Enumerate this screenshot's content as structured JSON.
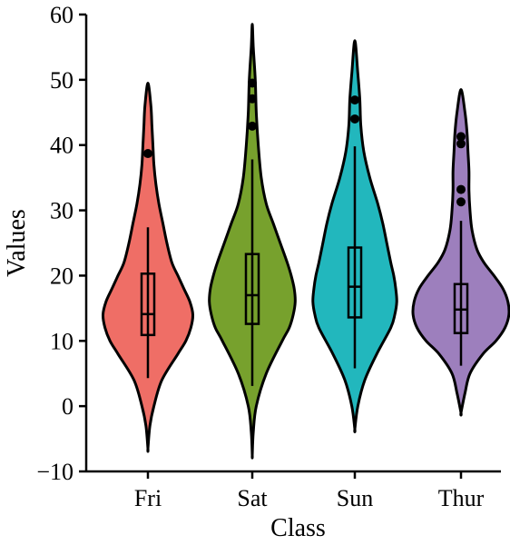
{
  "chart_data": {
    "type": "violin",
    "xlabel": "Class",
    "ylabel": "Values",
    "ylim": [
      -10,
      60
    ],
    "yticks": [
      -10,
      0,
      10,
      20,
      30,
      40,
      50,
      60
    ],
    "ytick_labels": [
      "−10",
      "0",
      "10",
      "20",
      "30",
      "40",
      "50",
      "60"
    ],
    "grid": false,
    "categories": [
      "Fri",
      "Sat",
      "Sun",
      "Thur"
    ],
    "colors": [
      "#ef6e66",
      "#77a12d",
      "#22b7bd",
      "#9d7fbd"
    ],
    "series": [
      {
        "name": "Fri",
        "violin_range": [
          -6.5,
          49.5
        ],
        "box": {
          "q1": 10.9,
          "median": 14.1,
          "q3": 20.3
        },
        "whisker": [
          4.3,
          27.4
        ],
        "outliers": [
          38.7
        ],
        "profile": [
          [
            -6.5,
            0
          ],
          [
            -3,
            2
          ],
          [
            0,
            6
          ],
          [
            4,
            14
          ],
          [
            8,
            30
          ],
          [
            10,
            38
          ],
          [
            12,
            43
          ],
          [
            14,
            45
          ],
          [
            16,
            42
          ],
          [
            18,
            36
          ],
          [
            20,
            30
          ],
          [
            22,
            24
          ],
          [
            25,
            19
          ],
          [
            28,
            15
          ],
          [
            31,
            11
          ],
          [
            34,
            8
          ],
          [
            37,
            6
          ],
          [
            40,
            5
          ],
          [
            43,
            4
          ],
          [
            46,
            3
          ],
          [
            49.5,
            0
          ]
        ]
      },
      {
        "name": "Sat",
        "violin_range": [
          -7.5,
          58.5
        ],
        "box": {
          "q1": 12.6,
          "median": 17.0,
          "q3": 23.3
        },
        "whisker": [
          3.1,
          37.8
        ],
        "outliers": [
          42.9,
          47.1,
          49.5
        ],
        "profile": [
          [
            -7.5,
            0
          ],
          [
            -4,
            1
          ],
          [
            0,
            4
          ],
          [
            5,
            14
          ],
          [
            10,
            30
          ],
          [
            12,
            37
          ],
          [
            14,
            41
          ],
          [
            16,
            43
          ],
          [
            18,
            42
          ],
          [
            20,
            39
          ],
          [
            22,
            35
          ],
          [
            25,
            28
          ],
          [
            28,
            21
          ],
          [
            31,
            14
          ],
          [
            35,
            9
          ],
          [
            40,
            6
          ],
          [
            45,
            4
          ],
          [
            50,
            3
          ],
          [
            55,
            1
          ],
          [
            58.5,
            0
          ]
        ]
      },
      {
        "name": "Sun",
        "violin_range": [
          -3.5,
          56.0
        ],
        "box": {
          "q1": 13.6,
          "median": 18.3,
          "q3": 24.3
        },
        "whisker": [
          5.8,
          39.8
        ],
        "outliers": [
          44.0,
          46.9
        ],
        "profile": [
          [
            -3.5,
            0
          ],
          [
            0,
            3
          ],
          [
            4,
            10
          ],
          [
            8,
            22
          ],
          [
            12,
            36
          ],
          [
            14,
            40
          ],
          [
            16,
            42
          ],
          [
            18,
            41
          ],
          [
            20,
            39
          ],
          [
            22,
            36
          ],
          [
            25,
            32
          ],
          [
            28,
            28
          ],
          [
            31,
            23
          ],
          [
            35,
            15
          ],
          [
            39,
            9
          ],
          [
            43,
            6
          ],
          [
            47,
            5
          ],
          [
            51,
            3
          ],
          [
            56,
            0
          ]
        ]
      },
      {
        "name": "Thur",
        "violin_range": [
          -1.0,
          48.5
        ],
        "box": {
          "q1": 11.2,
          "median": 14.8,
          "q3": 18.7
        },
        "whisker": [
          6.2,
          28.4
        ],
        "outliers": [
          31.3,
          33.2,
          40.2,
          41.3
        ],
        "profile": [
          [
            -1,
            0
          ],
          [
            2,
            4
          ],
          [
            5,
            9
          ],
          [
            8,
            22
          ],
          [
            10,
            35
          ],
          [
            12,
            44
          ],
          [
            14,
            48
          ],
          [
            16,
            47
          ],
          [
            18,
            42
          ],
          [
            20,
            33
          ],
          [
            22,
            23
          ],
          [
            24,
            16
          ],
          [
            27,
            11
          ],
          [
            30,
            9
          ],
          [
            33,
            8
          ],
          [
            36,
            8
          ],
          [
            39,
            7
          ],
          [
            42,
            6
          ],
          [
            45,
            4
          ],
          [
            48.5,
            0
          ]
        ]
      }
    ]
  }
}
